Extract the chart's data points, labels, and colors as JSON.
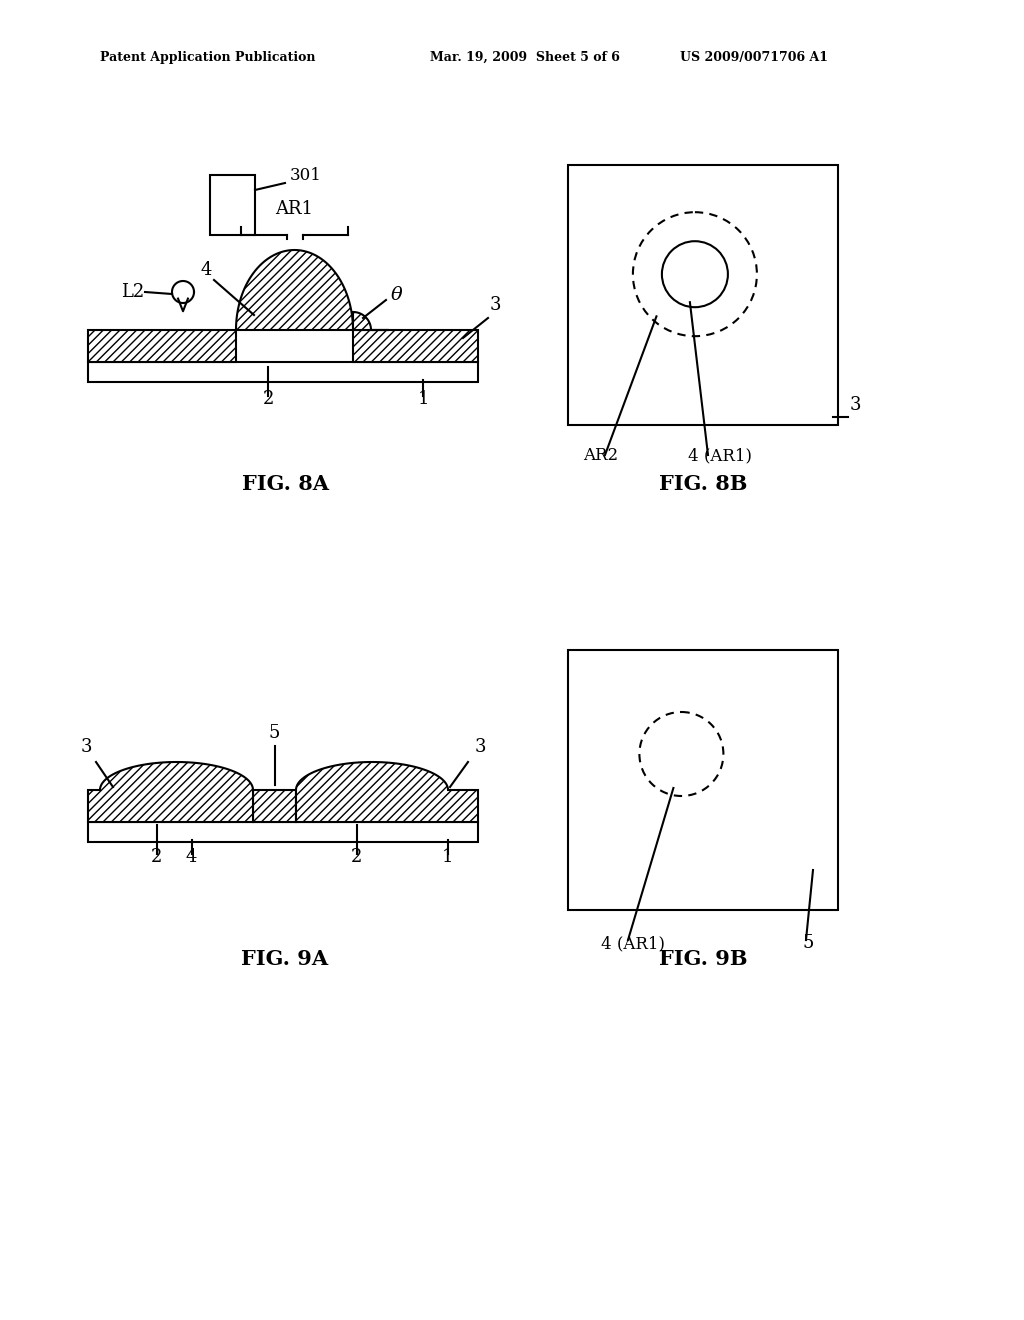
{
  "bg_color": "#ffffff",
  "header_left": "Patent Application Publication",
  "header_mid": "Mar. 19, 2009  Sheet 5 of 6",
  "header_right": "US 2009/0071706 A1",
  "fig8a_label": "FIG. 8A",
  "fig8b_label": "FIG. 8B",
  "fig9a_label": "FIG. 9A",
  "fig9b_label": "FIG. 9B",
  "line_color": "#000000"
}
